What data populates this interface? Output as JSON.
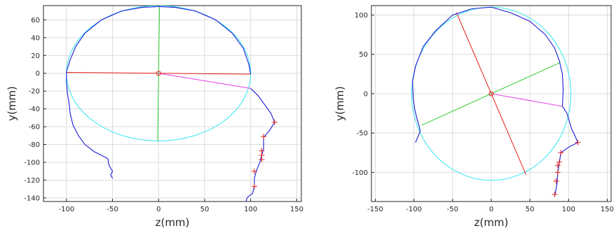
{
  "chart_data": [
    {
      "type": "line",
      "panel": "left",
      "xlabel": "z(mm)",
      "ylabel": "y(mm)",
      "xlim": [
        -125,
        155
      ],
      "ylim": [
        -144,
        76
      ],
      "xticks": [
        -100,
        -50,
        0,
        50,
        100,
        150
      ],
      "yticks": [
        -140,
        -120,
        -100,
        -80,
        -60,
        -40,
        -20,
        0,
        20,
        40,
        60
      ],
      "grid": true,
      "colors": {
        "ellipse": "#33e6ee",
        "profile": "#1a1ad6",
        "horizontal_axis": "#e8201a",
        "vertical_axis": "#2fcf2f",
        "nose_line": "#e63be6",
        "landmark": "#e8201a"
      },
      "ellipse": {
        "center": [
          0,
          0
        ],
        "rx": 100,
        "ry": 76
      },
      "center_point": [
        0,
        0
      ],
      "segments": [
        {
          "name": "horizontal_axis",
          "color": "#e8201a",
          "x": [
            -100,
            100
          ],
          "y": [
            1,
            -1
          ]
        },
        {
          "name": "vertical_axis",
          "color": "#2fcf2f",
          "x": [
            1,
            -1
          ],
          "y": [
            75,
            -76
          ]
        },
        {
          "name": "nose_line",
          "color": "#e63be6",
          "x": [
            0,
            100
          ],
          "y": [
            0,
            -17
          ]
        }
      ],
      "profile": {
        "x": [
          100,
          98,
          92,
          80,
          62,
          40,
          18,
          0,
          -18,
          -40,
          -62,
          -80,
          -90,
          -96,
          -100,
          -100,
          -99,
          -97,
          -96,
          -93,
          -87,
          -80,
          -70,
          -62,
          -55,
          -54,
          -50,
          -52,
          -50
        ],
        "y": [
          -1,
          10,
          28,
          45,
          60,
          70,
          74,
          75,
          74,
          70,
          60,
          45,
          30,
          15,
          2,
          -10,
          -22,
          -35,
          -45,
          -58,
          -70,
          -80,
          -88,
          -92,
          -96,
          -103,
          -110,
          -114,
          -118
        ]
      },
      "jaw": {
        "x": [
          100,
          108,
          115,
          122,
          126,
          120,
          114,
          114,
          112,
          110,
          106,
          104,
          104,
          102,
          98,
          96,
          95
        ],
        "y": [
          -17,
          -25,
          -35,
          -45,
          -55,
          -65,
          -72,
          -85,
          -92,
          -100,
          -110,
          -118,
          -127,
          -135,
          -138,
          -140,
          -144
        ]
      },
      "landmarks": {
        "x": [
          126,
          114,
          112,
          112,
          112,
          104,
          104
        ],
        "y": [
          -55,
          -71,
          -87,
          -92,
          -97,
          -110,
          -127
        ]
      }
    },
    {
      "type": "line",
      "panel": "right",
      "xlabel": "z(mm)",
      "ylabel": "y(mm)",
      "xlim": [
        -155,
        155
      ],
      "ylim": [
        -137,
        112
      ],
      "xticks": [
        -150,
        -100,
        -50,
        0,
        50,
        100,
        150
      ],
      "yticks": [
        -100,
        -50,
        0,
        50,
        100
      ],
      "grid": true,
      "colors": {
        "ellipse": "#33e6ee",
        "profile": "#1a1ad6",
        "major_axis": "#e8201a",
        "minor_axis": "#2fcf2f",
        "nose_line": "#e63be6",
        "landmark": "#e8201a"
      },
      "ellipse": {
        "center": [
          0,
          0
        ],
        "rx": 103,
        "ry": 110
      },
      "center_point": [
        0,
        0
      ],
      "segments": [
        {
          "name": "major_axis",
          "color": "#e8201a",
          "x": [
            -45,
            45
          ],
          "y": [
            103,
            -103
          ]
        },
        {
          "name": "minor_axis",
          "color": "#2fcf2f",
          "x": [
            -90,
            90
          ],
          "y": [
            -40,
            40
          ]
        },
        {
          "name": "nose_line",
          "color": "#e63be6",
          "x": [
            0,
            92
          ],
          "y": [
            0,
            -16
          ]
        }
      ],
      "profile": {
        "x": [
          92,
          93,
          92,
          88,
          82,
          70,
          50,
          25,
          0,
          -25,
          -50,
          -72,
          -88,
          -98,
          -102,
          -101,
          -99,
          -96,
          -93,
          -92,
          -95,
          -98
        ],
        "y": [
          -16,
          5,
          25,
          42,
          58,
          75,
          92,
          103,
          110,
          108,
          100,
          80,
          60,
          35,
          15,
          -5,
          -20,
          -32,
          -42,
          -48,
          -55,
          -62
        ]
      },
      "jaw": {
        "x": [
          92,
          98,
          101,
          104,
          108,
          112,
          100,
          90,
          88,
          86,
          85,
          82
        ],
        "y": [
          -16,
          -25,
          -35,
          -45,
          -53,
          -62,
          -68,
          -75,
          -88,
          -100,
          -115,
          -130
        ]
      },
      "landmarks": {
        "x": [
          112,
          90,
          88,
          86,
          86,
          84,
          82
        ],
        "y": [
          -62,
          -75,
          -87,
          -91,
          -100,
          -111,
          -128
        ]
      }
    }
  ]
}
